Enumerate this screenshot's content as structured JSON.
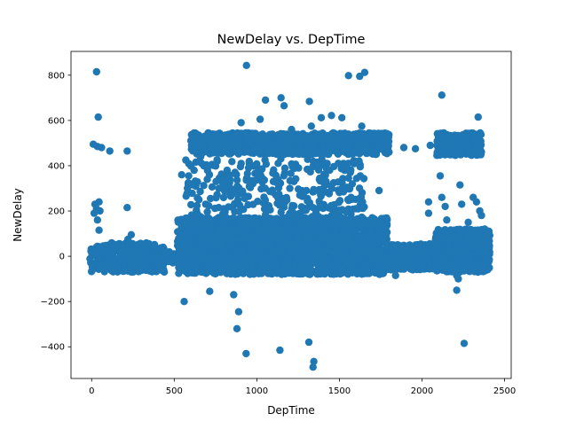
{
  "chart_data": {
    "type": "scatter",
    "title": "NewDelay vs. DepTime",
    "xlabel": "DepTime",
    "ylabel": "NewDelay",
    "xlim": [
      -125,
      2540
    ],
    "ylim": [
      -540,
      905
    ],
    "xticks": [
      0,
      500,
      1000,
      1500,
      2000,
      2500
    ],
    "yticks": [
      -400,
      -200,
      0,
      200,
      400,
      600,
      800
    ],
    "xtick_labels": [
      "0",
      "500",
      "1000",
      "1500",
      "2000",
      "2500"
    ],
    "ytick_labels": [
      "−400",
      "−200",
      "0",
      "200",
      "400",
      "600",
      "800"
    ],
    "grid": false,
    "marker_color": "#1f77b4",
    "series": [
      {
        "points": [
          [
            30,
            815
          ],
          [
            40,
            615
          ],
          [
            937,
            843
          ],
          [
            1653,
            812
          ],
          [
            1555,
            798
          ],
          [
            1623,
            795
          ],
          [
            1147,
            700
          ],
          [
            1052,
            690
          ],
          [
            1318,
            684
          ],
          [
            1165,
            665
          ],
          [
            2120,
            712
          ],
          [
            2340,
            615
          ],
          [
            10,
            495
          ],
          [
            35,
            485
          ],
          [
            60,
            480
          ],
          [
            110,
            465
          ],
          [
            215,
            465
          ],
          [
            905,
            590
          ],
          [
            1390,
            612
          ],
          [
            1452,
            622
          ],
          [
            1515,
            612
          ],
          [
            1635,
            575
          ],
          [
            1210,
            560
          ],
          [
            1330,
            575
          ],
          [
            1020,
            605
          ],
          [
            1700,
            525
          ],
          [
            1780,
            500
          ],
          [
            1890,
            480
          ],
          [
            1960,
            475
          ],
          [
            2050,
            490
          ],
          [
            1145,
            430
          ],
          [
            1150,
            445
          ],
          [
            20,
            230
          ],
          [
            30,
            210
          ],
          [
            15,
            190
          ],
          [
            45,
            240
          ],
          [
            50,
            200
          ],
          [
            35,
            160
          ],
          [
            45,
            115
          ],
          [
            215,
            215
          ],
          [
            240,
            95
          ],
          [
            220,
            75
          ],
          [
            545,
            360
          ],
          [
            570,
            425
          ],
          [
            580,
            300
          ],
          [
            610,
            320
          ],
          [
            620,
            380
          ],
          [
            650,
            250
          ],
          [
            660,
            440
          ],
          [
            690,
            230
          ],
          [
            700,
            340
          ],
          [
            760,
            420
          ],
          [
            770,
            300
          ],
          [
            800,
            210
          ],
          [
            820,
            380
          ],
          [
            830,
            360
          ],
          [
            840,
            270
          ],
          [
            905,
            410
          ],
          [
            950,
            390
          ],
          [
            1010,
            365
          ],
          [
            1050,
            300
          ],
          [
            1100,
            330
          ],
          [
            1140,
            320
          ],
          [
            1200,
            300
          ],
          [
            1260,
            270
          ],
          [
            1300,
            290
          ],
          [
            1340,
            215
          ],
          [
            1420,
            330
          ],
          [
            1450,
            310
          ],
          [
            1510,
            290
          ],
          [
            1570,
            260
          ],
          [
            1600,
            210
          ],
          [
            1640,
            240
          ],
          [
            1740,
            290
          ],
          [
            2040,
            240
          ],
          [
            2040,
            190
          ],
          [
            2110,
            355
          ],
          [
            2120,
            260
          ],
          [
            2140,
            220
          ],
          [
            2150,
            160
          ],
          [
            2230,
            315
          ],
          [
            2240,
            230
          ],
          [
            2280,
            150
          ],
          [
            2310,
            260
          ],
          [
            2330,
            240
          ],
          [
            2350,
            200
          ],
          [
            2360,
            180
          ],
          [
            2380,
            120
          ],
          [
            560,
            -200
          ],
          [
            715,
            -155
          ],
          [
            860,
            -170
          ],
          [
            890,
            -245
          ],
          [
            880,
            -320
          ],
          [
            935,
            -430
          ],
          [
            1140,
            -415
          ],
          [
            1315,
            -380
          ],
          [
            1345,
            -465
          ],
          [
            1340,
            -490
          ],
          [
            2210,
            -150
          ],
          [
            2255,
            -385
          ],
          [
            2220,
            -100
          ],
          [
            1840,
            -85
          ],
          [
            2210,
            -85
          ]
        ]
      }
    ],
    "bands": [
      {
        "x": [
          -10,
          440
        ],
        "y": [
          -70,
          60
        ],
        "density": 320
      },
      {
        "x": [
          440,
          520
        ],
        "y": [
          -30,
          20
        ],
        "density": 20
      },
      {
        "x": [
          520,
          1790
        ],
        "y": [
          -80,
          170
        ],
        "density": 2200
      },
      {
        "x": [
          1790,
          2080
        ],
        "y": [
          -60,
          55
        ],
        "density": 320
      },
      {
        "x": [
          2080,
          2410
        ],
        "y": [
          -70,
          120
        ],
        "density": 700
      },
      {
        "x": [
          600,
          1800
        ],
        "y": [
          450,
          545
        ],
        "density": 950
      },
      {
        "x": [
          2090,
          2360
        ],
        "y": [
          445,
          545
        ],
        "density": 260
      },
      {
        "x": [
          570,
          1660
        ],
        "y": [
          150,
          430
        ],
        "density": 330
      }
    ]
  }
}
